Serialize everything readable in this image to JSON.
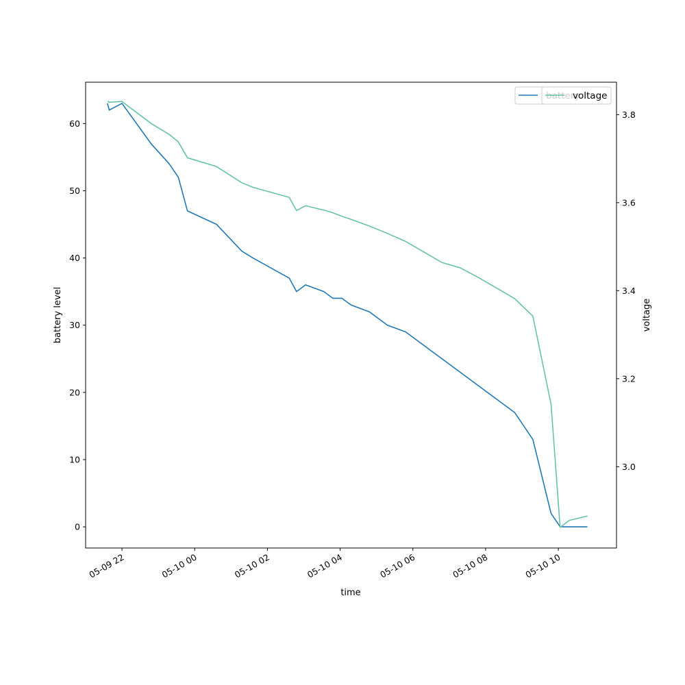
{
  "chart_data": {
    "type": "line",
    "xlabel": "time",
    "ylabel_left": "battery level",
    "ylabel_right": "voltage",
    "x_tick_labels": [
      "05-09 22",
      "05-10 00",
      "05-10 02",
      "05-10 04",
      "05-10 06",
      "05-10 08",
      "05-10 10"
    ],
    "x_ticks_hours": [
      22,
      24,
      26,
      28,
      30,
      32,
      34
    ],
    "xlim_hours": [
      21.0,
      35.6
    ],
    "left_axis": {
      "ylim": [
        -3.15,
        66.15
      ],
      "ticks": [
        0,
        10,
        20,
        30,
        40,
        50,
        60
      ]
    },
    "right_axis": {
      "ylim": [
        2.8153,
        3.8737
      ],
      "ticks": [
        3.0,
        3.2,
        3.4,
        3.6,
        3.8
      ]
    },
    "series": [
      {
        "name": "battery",
        "axis": "left",
        "color": "#1f77b4",
        "x_hours": [
          21.6,
          21.65,
          22.0,
          22.8,
          23.3,
          23.55,
          23.8,
          24.6,
          25.3,
          25.6,
          26.6,
          26.8,
          27.05,
          27.55,
          27.8,
          28.05,
          28.3,
          28.8,
          29.3,
          29.8,
          30.3,
          30.8,
          31.3,
          31.8,
          32.3,
          32.8,
          33.3,
          33.8,
          34.05,
          34.3,
          34.8
        ],
        "values": [
          63,
          62,
          63,
          57,
          54,
          52,
          47,
          45,
          41,
          40,
          37,
          35,
          36,
          35,
          34,
          34,
          33,
          32,
          30,
          29,
          27,
          25,
          23,
          21,
          19,
          17,
          13,
          2,
          0,
          0,
          0
        ]
      },
      {
        "name": "voltage",
        "axis": "right",
        "color": "#66c2a5",
        "x_hours": [
          21.6,
          21.65,
          22.0,
          22.8,
          23.3,
          23.55,
          23.8,
          24.6,
          25.3,
          25.6,
          26.6,
          26.8,
          27.05,
          27.55,
          27.8,
          28.05,
          28.3,
          28.8,
          29.3,
          29.8,
          30.3,
          30.8,
          31.3,
          31.8,
          32.3,
          32.8,
          33.3,
          33.8,
          34.05,
          34.3,
          34.8
        ],
        "values": [
          3.83,
          3.828,
          3.83,
          3.78,
          3.755,
          3.738,
          3.702,
          3.682,
          3.645,
          3.635,
          3.612,
          3.582,
          3.593,
          3.583,
          3.577,
          3.569,
          3.562,
          3.547,
          3.53,
          3.512,
          3.488,
          3.464,
          3.452,
          3.43,
          3.406,
          3.382,
          3.342,
          3.142,
          2.862,
          2.878,
          2.888
        ]
      }
    ],
    "legend_left": {
      "placement": "upper-right",
      "entries": [
        "battery"
      ]
    },
    "legend_right": {
      "placement": "upper-right",
      "entries": [
        "voltage"
      ]
    },
    "grid": false
  }
}
